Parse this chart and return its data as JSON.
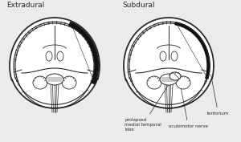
{
  "title_left": "Extradural",
  "title_right": "Subdural",
  "label1": "prolapsed\nmedial temporal\nlobe",
  "label2": "oculomotor nerve",
  "label3": "tentorium",
  "bg_color": "#ebebeb",
  "line_color": "#2a2a2a",
  "black_fill": "#111111",
  "white_fill": "#ffffff"
}
